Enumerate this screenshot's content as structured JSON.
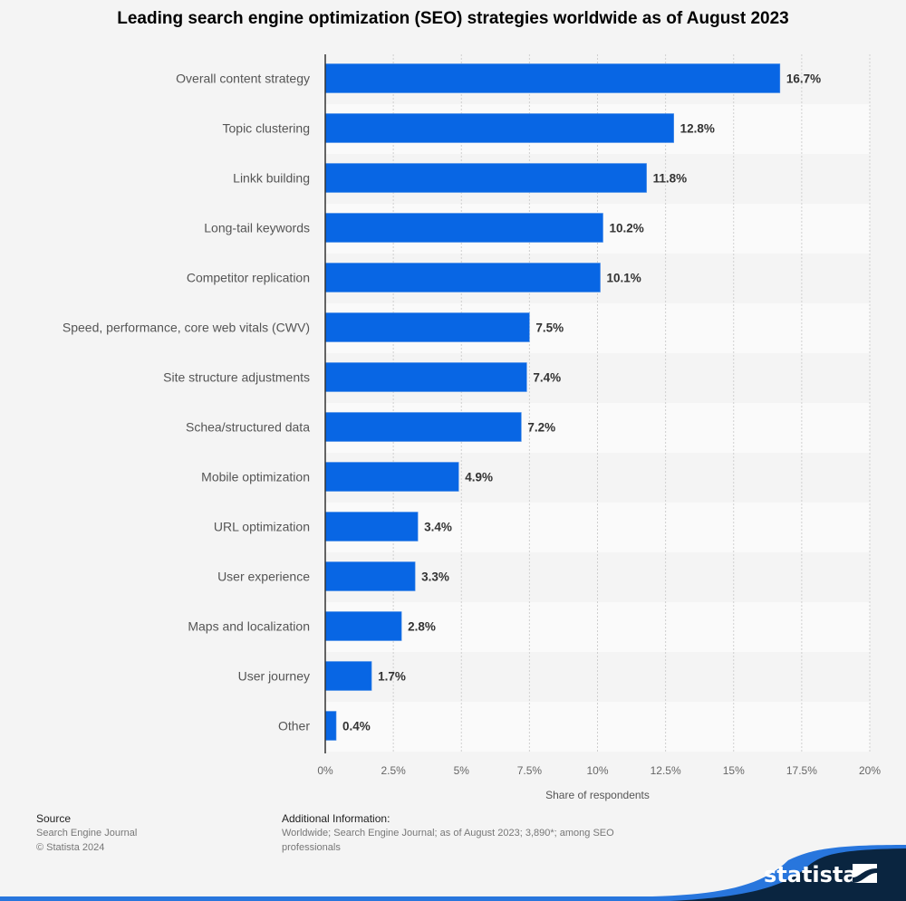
{
  "header": {
    "title": "Leading search engine optimization (SEO) strategies worldwide as of August 2023"
  },
  "chart_data": {
    "type": "bar",
    "orientation": "horizontal",
    "title": "Leading search engine optimization (SEO) strategies worldwide as of August 2023",
    "categories": [
      "Overall content strategy",
      "Topic clustering",
      "Linkk building",
      "Long-tail keywords",
      "Competitor replication",
      "Speed, performance, core web vitals (CWV)",
      "Site structure adjustments",
      "Schea/structured data",
      "Mobile optimization",
      "URL optimization",
      "User experience",
      "Maps and localization",
      "User journey",
      "Other"
    ],
    "values": [
      16.7,
      12.8,
      11.8,
      10.2,
      10.1,
      7.5,
      7.4,
      7.2,
      4.9,
      3.4,
      3.3,
      2.8,
      1.7,
      0.4
    ],
    "value_labels": [
      "16.7%",
      "12.8%",
      "11.8%",
      "10.2%",
      "10.1%",
      "7.5%",
      "7.4%",
      "7.2%",
      "4.9%",
      "3.4%",
      "3.3%",
      "2.8%",
      "1.7%",
      "0.4%"
    ],
    "xlabel": "Share of respondents",
    "ylabel": "",
    "xlim": [
      0,
      20
    ],
    "xticks": [
      0,
      2.5,
      5,
      7.5,
      10,
      12.5,
      15,
      17.5,
      20
    ],
    "xtick_labels": [
      "0%",
      "2.5%",
      "5%",
      "7.5%",
      "10%",
      "12.5%",
      "15%",
      "17.5%",
      "20%"
    ],
    "grid": "vertical dashed",
    "bar_color": "#0866e4",
    "legend": "none"
  },
  "footer": {
    "source_heading": "Source",
    "source_lines": [
      "Search Engine Journal",
      "© Statista 2024"
    ],
    "additional_heading": "Additional Information:",
    "additional_text": "Worldwide; Search Engine Journal; as of August 2023; 3,890*; among SEO professionals"
  },
  "brand": {
    "logo_text": "statista",
    "dark_color": "#0a2540",
    "accent_color": "#2876dd"
  }
}
